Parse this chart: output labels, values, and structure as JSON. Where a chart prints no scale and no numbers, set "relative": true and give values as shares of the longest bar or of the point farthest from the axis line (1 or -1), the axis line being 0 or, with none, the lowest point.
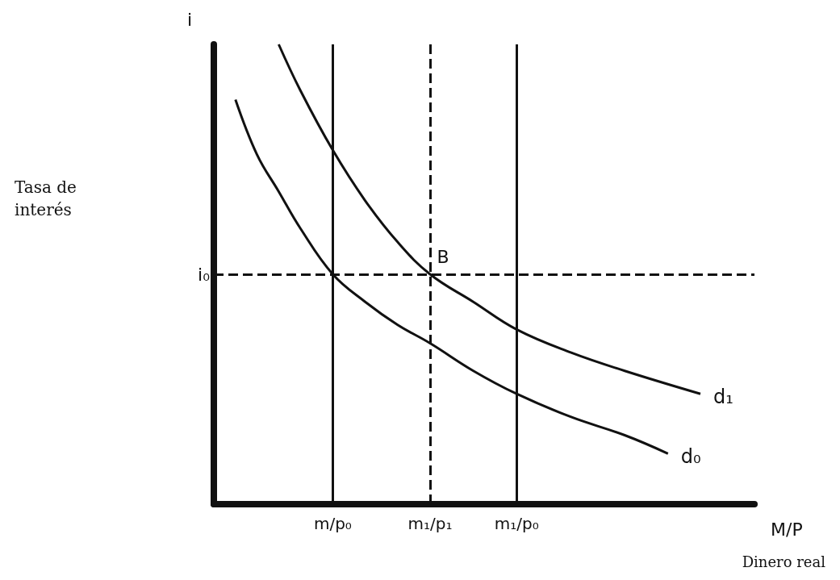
{
  "chart_data": {
    "type": "line",
    "relative": true,
    "ylabel": "i",
    "xlabel": "M/P",
    "annotations": [
      "Tasa de\ninterés",
      "Dinero real",
      {
        "text": "B",
        "x": "m₁/p₁",
        "y": 0.5
      }
    ],
    "categories": [
      null,
      null,
      null,
      null,
      null,
      null,
      null,
      null,
      null,
      null,
      null,
      "m/p₀",
      null,
      null,
      null,
      null,
      null,
      null,
      null,
      null,
      "m₁/p₁",
      null,
      null,
      null,
      null,
      null,
      null,
      null,
      "m₁/p₀",
      null,
      null,
      null,
      null,
      null,
      null,
      null,
      null,
      null,
      null,
      null,
      null,
      null,
      null,
      null,
      null,
      null,
      null,
      null,
      null,
      null,
      null
    ],
    "series": [
      {
        "name": "d₀",
        "color": "#111111",
        "values": [
          null,
          null,
          0.88,
          null,
          0.76,
          null,
          0.68,
          null,
          0.6,
          null,
          null,
          0.5,
          null,
          null,
          0.44,
          null,
          null,
          0.39,
          null,
          null,
          0.35,
          null,
          null,
          null,
          0.29,
          null,
          null,
          null,
          0.24,
          null,
          null,
          null,
          null,
          0.19,
          null,
          null,
          null,
          null,
          0.15,
          null,
          null,
          null,
          0.11,
          null,
          null,
          null,
          null,
          null,
          null,
          null,
          null
        ]
      },
      {
        "name": "d₁",
        "color": "#111111",
        "values": [
          null,
          null,
          null,
          null,
          null,
          null,
          1.0,
          null,
          0.9,
          null,
          null,
          0.77,
          null,
          null,
          0.66,
          null,
          null,
          0.57,
          null,
          null,
          0.5,
          null,
          null,
          null,
          0.44,
          null,
          null,
          null,
          0.38,
          null,
          null,
          null,
          null,
          0.33,
          null,
          null,
          null,
          null,
          0.29,
          null,
          null,
          null,
          null,
          null,
          null,
          0.24,
          null,
          null,
          null,
          null,
          null
        ]
      }
    ],
    "ref_lines": [
      {
        "axis": "x",
        "value": "m/p₀",
        "line_style": "solid",
        "color": "#111111"
      },
      {
        "axis": "x",
        "value": "m₁/p₁",
        "line_style": "dashed",
        "color": "#111111"
      },
      {
        "axis": "x",
        "value": "m₁/p₀",
        "line_style": "solid",
        "color": "#111111"
      },
      {
        "axis": "y",
        "value": 0.5,
        "label": "i₀",
        "line_style": "dashed",
        "color": "#111111"
      }
    ],
    "marker": "none",
    "line_style": "solid",
    "grid": false,
    "legend": false
  }
}
